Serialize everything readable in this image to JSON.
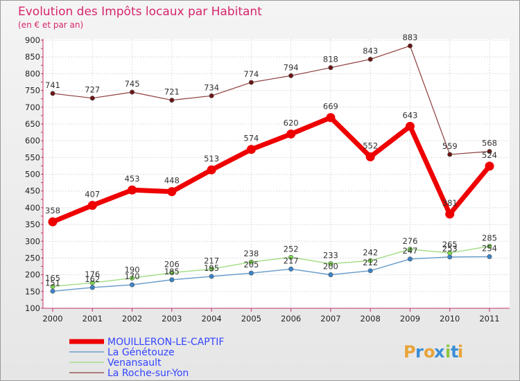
{
  "chart_data": {
    "type": "line",
    "title": "Evolution des Impôts locaux par Habitant",
    "subtitle": "(en € et par an)",
    "categories": [
      "2000",
      "2001",
      "2002",
      "2003",
      "2004",
      "2005",
      "2006",
      "2007",
      "2008",
      "2009",
      "2010",
      "2011"
    ],
    "ylim": [
      100,
      900
    ],
    "yticks": [
      100,
      150,
      200,
      250,
      300,
      350,
      400,
      450,
      500,
      550,
      600,
      650,
      700,
      750,
      800,
      850,
      900
    ],
    "grid": true,
    "legend_position": "bottom-left",
    "series": [
      {
        "name": "La Génétouze",
        "color": "#6d9fcc",
        "marker": "#3a84c9",
        "width": 1.5,
        "values": [
          151,
          162,
          170,
          185,
          195,
          205,
          217,
          200,
          212,
          247,
          253,
          254
        ],
        "labels": [
          "151",
          "162",
          "170",
          "185",
          "195",
          "205",
          "217",
          "200",
          "212",
          "247",
          "253",
          "254"
        ]
      },
      {
        "name": "Venansault",
        "color": "#a6de8a",
        "marker": "#7ed850",
        "width": 1.5,
        "values": [
          165,
          176,
          190,
          206,
          217,
          238,
          252,
          233,
          242,
          276,
          265,
          285
        ],
        "labels": [
          "165",
          "176",
          "190",
          "206",
          "217",
          "238",
          "252",
          "233",
          "242",
          "276",
          "265",
          "285"
        ]
      },
      {
        "name": "La Roche-sur-Yon",
        "color": "#8c3a3a",
        "marker": "#6b1515",
        "width": 1.2,
        "values": [
          741,
          727,
          745,
          721,
          734,
          774,
          794,
          818,
          843,
          883,
          559,
          568
        ],
        "labels": [
          "741",
          "727",
          "745",
          "721",
          "734",
          "774",
          "794",
          "818",
          "843",
          "883",
          "559",
          "568"
        ]
      },
      {
        "name": "MOUILLERON-LE-CAPTIF",
        "color": "#ee0000",
        "marker": "#ee0000",
        "width": 7,
        "values": [
          358,
          407,
          453,
          448,
          513,
          574,
          620,
          669,
          552,
          643,
          381,
          524
        ],
        "labels": [
          "358",
          "407",
          "453",
          "448",
          "513",
          "574",
          "620",
          "669",
          "552",
          "643",
          "381",
          "524"
        ]
      }
    ],
    "legend": [
      "MOUILLERON-LE-CAPTIF",
      "La Génétouze",
      "Venansault",
      "La Roche-sur-Yon"
    ],
    "legend_colors": [
      "#ee0000",
      "#6d9fcc",
      "#a6de8a",
      "#8c3a3a"
    ],
    "legend_widths": [
      7,
      1.5,
      1.5,
      1.2
    ]
  },
  "logo": {
    "text": "Proxiti",
    "letters": [
      "P",
      "r",
      "o",
      "x",
      "i",
      "t",
      "i"
    ],
    "colors": [
      "#e8a33a",
      "#3a8fd6",
      "#e8a33a",
      "#3a8fd6",
      "#8cc63f",
      "#3a8fd6",
      "#e8a33a"
    ]
  }
}
